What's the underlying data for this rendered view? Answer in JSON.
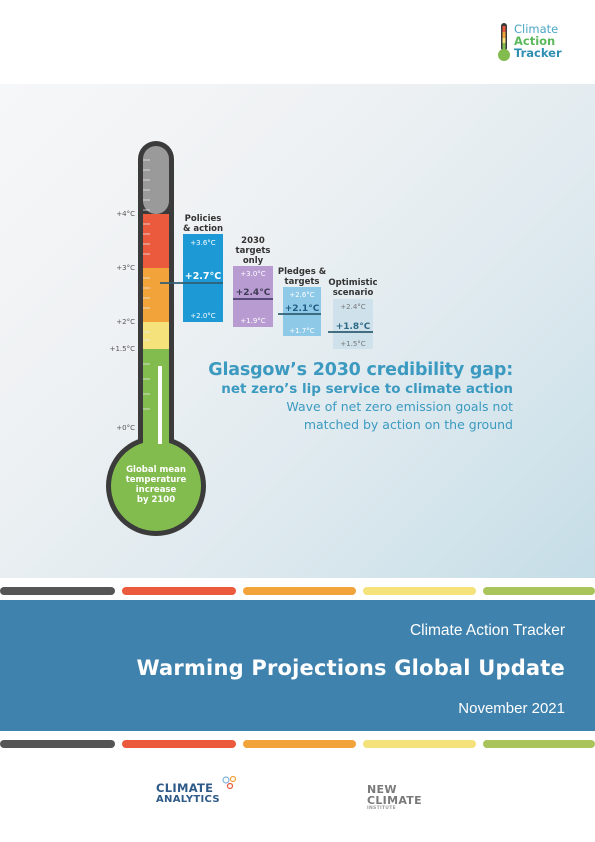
{
  "logo": {
    "line1": "Climate",
    "line2": "Action",
    "line3": "Tracker"
  },
  "thermometer": {
    "axis_ticks": [
      "+4°C",
      "+3°C",
      "+2°C",
      "+1.5°C",
      "+0°C"
    ],
    "bulb_label_lines": [
      "Global mean",
      "temperature",
      "increase",
      "by 2100"
    ],
    "colors": {
      "red": "#eb5a3c",
      "orange": "#f2a33a",
      "yellow": "#f5e27a",
      "green": "#82bb4e",
      "tube": "#3b3b3b"
    }
  },
  "scenarios": [
    {
      "name_lines": [
        "Policies",
        "& action"
      ],
      "high": "+3.6°C",
      "central": "+2.7°C",
      "low": "+2.0°C",
      "color": "#1d9ad6"
    },
    {
      "name_lines": [
        "2030",
        "targets",
        "only"
      ],
      "high": "+3.0°C",
      "central": "+2.4°C",
      "low": "+1.9°C",
      "color": "#b79bd1"
    },
    {
      "name_lines": [
        "Pledges &",
        "targets"
      ],
      "high": "+2.6°C",
      "central": "+2.1°C",
      "low": "+1.7°C",
      "color": "#8ec9e8"
    },
    {
      "name_lines": [
        "Optimistic",
        "scenario"
      ],
      "high": "+2.4°C",
      "central": "+1.8°C",
      "low": "+1.5°C",
      "color": "#cfe1ea"
    }
  ],
  "headline": {
    "line1": "Glasgow’s 2030 credibility gap:",
    "line2": "net zero’s lip service to climate action",
    "line3": "Wave of net zero emission goals not",
    "line4": "matched by action on the ground"
  },
  "stripe_colors": [
    "#555555",
    "#eb5a3c",
    "#f2a33a",
    "#f5e27a",
    "#a8c45a"
  ],
  "band": {
    "org": "Climate Action Tracker",
    "title": "Warming Projections Global Update",
    "date": "November 2021"
  },
  "footer": {
    "ca_line1": "CLIMATE",
    "ca_line2": "ANALYTICS",
    "nci_line1": "NEW",
    "nci_line2": "CLIMATE",
    "nci_line3": "INSTITUTE"
  }
}
